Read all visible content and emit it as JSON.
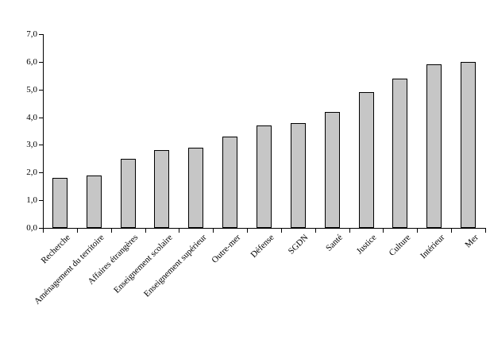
{
  "chart_data": {
    "type": "bar",
    "title": "",
    "xlabel": "",
    "ylabel": "",
    "categories": [
      "Recherche",
      "Aménagement du territoire",
      "Affaires étrangères",
      "Enseignement scolaire",
      "Enseignement supérieur",
      "Outre-mer",
      "Défense",
      "SGDN",
      "Santé",
      "Justice",
      "Culture",
      "Intérieur",
      "Mer"
    ],
    "values": [
      1.8,
      1.9,
      2.5,
      2.8,
      2.9,
      3.3,
      3.7,
      3.8,
      4.2,
      4.9,
      5.4,
      5.9,
      6.0
    ],
    "ylim": [
      0,
      7
    ],
    "ytick_step": 1,
    "ytick_labels": [
      "0,0",
      "1,0",
      "2,0",
      "3,0",
      "4,0",
      "5,0",
      "6,0",
      "7,0"
    ],
    "grid": false,
    "legend": false,
    "x_label_rotation_deg": 45,
    "colors": {
      "bar_fill": "#c6c6c6",
      "bar_border": "#000000",
      "axis": "#000000",
      "background": "#ffffff",
      "text": "#000000"
    }
  }
}
